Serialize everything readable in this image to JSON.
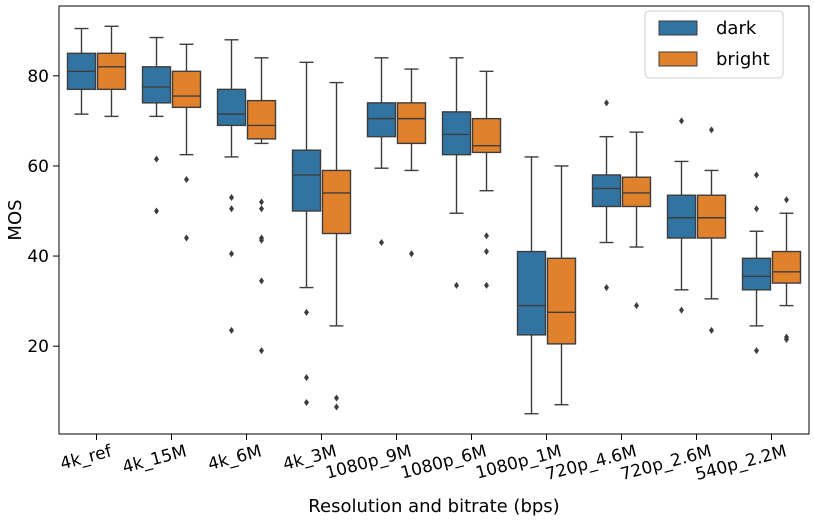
{
  "chart_data": {
    "type": "boxplot",
    "title": "",
    "xlabel": "Resolution and bitrate (bps)",
    "ylabel": "MOS",
    "ylim": [
      0.5,
      95.5
    ],
    "yticks": [
      20,
      40,
      60,
      80
    ],
    "grid": false,
    "legend_position": "top-right",
    "categories": [
      "4k_ref",
      "4k_15M",
      "4k_6M",
      "4k_3M",
      "1080p_9M",
      "1080p_6M",
      "1080p_1M",
      "720p_4.6M",
      "720p_2.6M",
      "540p_2.2M"
    ],
    "series": [
      {
        "name": "dark",
        "color": "#3274a1",
        "boxes": [
          {
            "whislo": 71.5,
            "q1": 77,
            "med": 81,
            "q3": 85,
            "whishi": 90.5,
            "fliers": []
          },
          {
            "whislo": 71,
            "q1": 74,
            "med": 77.5,
            "q3": 82,
            "whishi": 88.5,
            "fliers": [
              61.5,
              50
            ]
          },
          {
            "whislo": 62,
            "q1": 69,
            "med": 71.5,
            "q3": 77,
            "whishi": 88,
            "fliers": [
              53,
              50.5,
              40.5,
              23.5
            ]
          },
          {
            "whislo": 33,
            "q1": 50,
            "med": 58,
            "q3": 63.5,
            "whishi": 83,
            "fliers": [
              27.5,
              13,
              7.5
            ]
          },
          {
            "whislo": 59.5,
            "q1": 66.5,
            "med": 70.5,
            "q3": 74,
            "whishi": 84,
            "fliers": [
              43
            ]
          },
          {
            "whislo": 49.5,
            "q1": 62.5,
            "med": 67,
            "q3": 72,
            "whishi": 84,
            "fliers": [
              33.5
            ]
          },
          {
            "whislo": 5,
            "q1": 22.5,
            "med": 29,
            "q3": 41,
            "whishi": 62,
            "fliers": []
          },
          {
            "whislo": 43,
            "q1": 51,
            "med": 55,
            "q3": 58,
            "whishi": 66.5,
            "fliers": [
              74,
              33
            ]
          },
          {
            "whislo": 32.5,
            "q1": 44,
            "med": 48.5,
            "q3": 53.5,
            "whishi": 61,
            "fliers": [
              70,
              28
            ]
          },
          {
            "whislo": 24.5,
            "q1": 32.5,
            "med": 35.5,
            "q3": 39.5,
            "whishi": 45.5,
            "fliers": [
              58,
              50.5,
              19
            ]
          }
        ]
      },
      {
        "name": "bright",
        "color": "#e1812c",
        "boxes": [
          {
            "whislo": 71,
            "q1": 77,
            "med": 82,
            "q3": 85,
            "whishi": 91,
            "fliers": []
          },
          {
            "whislo": 62.5,
            "q1": 73,
            "med": 75.5,
            "q3": 81,
            "whishi": 87,
            "fliers": [
              57,
              44
            ]
          },
          {
            "whislo": 65,
            "q1": 66,
            "med": 69,
            "q3": 74.5,
            "whishi": 84,
            "fliers": [
              52,
              50.5,
              44,
              43.5,
              34.5,
              19
            ]
          },
          {
            "whislo": 24.5,
            "q1": 45,
            "med": 54,
            "q3": 59,
            "whishi": 78.5,
            "fliers": [
              8.5,
              6.5
            ]
          },
          {
            "whislo": 59,
            "q1": 65,
            "med": 70.5,
            "q3": 74,
            "whishi": 81.5,
            "fliers": [
              40.5
            ]
          },
          {
            "whislo": 54.5,
            "q1": 63,
            "med": 64.5,
            "q3": 70.5,
            "whishi": 81,
            "fliers": [
              44.5,
              41,
              33.5
            ]
          },
          {
            "whislo": 7,
            "q1": 20.5,
            "med": 27.5,
            "q3": 39.5,
            "whishi": 60,
            "fliers": []
          },
          {
            "whislo": 42,
            "q1": 51,
            "med": 54,
            "q3": 57.5,
            "whishi": 67.5,
            "fliers": [
              29
            ]
          },
          {
            "whislo": 30.5,
            "q1": 44,
            "med": 48.5,
            "q3": 53.5,
            "whishi": 59,
            "fliers": [
              68,
              23.5
            ]
          },
          {
            "whislo": 29,
            "q1": 34,
            "med": 36.5,
            "q3": 41,
            "whishi": 49.5,
            "fliers": [
              52.5,
              22,
              21.5
            ]
          }
        ]
      }
    ]
  }
}
